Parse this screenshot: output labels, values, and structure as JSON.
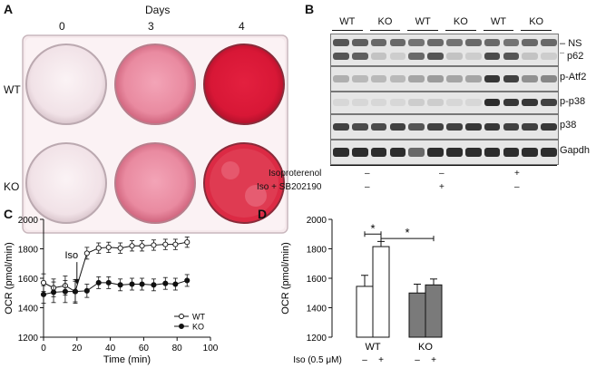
{
  "panels": {
    "A": {
      "letter": "A",
      "days_title": "Days",
      "day_labels": [
        "0",
        "3",
        "4"
      ],
      "row_labels": [
        "WT",
        "KO"
      ]
    },
    "B": {
      "letter": "B",
      "lane_groups": [
        "WT",
        "KO",
        "WT",
        "KO",
        "WT",
        "KO"
      ],
      "bands": [
        "NS",
        "p62",
        "p-Atf2",
        "p-p38",
        "p38",
        "Gapdh"
      ],
      "treatments": [
        {
          "label": "Isoproterenol",
          "signs": [
            "–",
            "–",
            "+"
          ]
        },
        {
          "label": "Iso + SB202190",
          "signs": [
            "–",
            "+",
            "–"
          ]
        }
      ]
    },
    "C": {
      "letter": "C"
    },
    "D": {
      "letter": "D"
    }
  },
  "chart_data": [
    {
      "type": "line",
      "panel": "C",
      "xlabel": "Time (min)",
      "ylabel": "OCR (pmol/min)",
      "xlim": [
        0,
        100
      ],
      "ylim": [
        1200,
        2000
      ],
      "xticks": [
        0,
        20,
        40,
        60,
        80,
        100
      ],
      "yticks": [
        1200,
        1400,
        1600,
        1800,
        2000
      ],
      "annotation": {
        "text": "Iso",
        "x": 20
      },
      "series": [
        {
          "name": "WT",
          "marker": "open-circle",
          "x": [
            0,
            6,
            13,
            19,
            26,
            33,
            39,
            46,
            53,
            59,
            66,
            73,
            79,
            86
          ],
          "y": [
            1570,
            1535,
            1550,
            1510,
            1770,
            1805,
            1810,
            1805,
            1820,
            1820,
            1825,
            1830,
            1830,
            1845
          ],
          "err": [
            60,
            60,
            65,
            70,
            40,
            35,
            35,
            35,
            35,
            35,
            35,
            35,
            35,
            35
          ]
        },
        {
          "name": "KO",
          "marker": "filled-circle",
          "x": [
            0,
            6,
            13,
            19,
            26,
            33,
            39,
            46,
            53,
            59,
            66,
            73,
            79,
            86
          ],
          "y": [
            1490,
            1505,
            1510,
            1510,
            1515,
            1570,
            1570,
            1555,
            1560,
            1560,
            1555,
            1565,
            1560,
            1585
          ],
          "err": [
            60,
            70,
            75,
            80,
            45,
            40,
            40,
            40,
            40,
            40,
            40,
            40,
            40,
            40
          ]
        }
      ]
    },
    {
      "type": "bar",
      "panel": "D",
      "ylabel": "OCR (pmol/min)",
      "ylim": [
        1200,
        2000
      ],
      "yticks": [
        1200,
        1400,
        1600,
        1800,
        2000
      ],
      "groups": [
        "WT",
        "KO"
      ],
      "treatment_label": "Iso (0.5 μM)",
      "treatment_signs": [
        "–",
        "+",
        "–",
        "+"
      ],
      "bars": [
        {
          "group": "WT",
          "iso": "–",
          "value": 1545,
          "err": 75,
          "fill": "#ffffff"
        },
        {
          "group": "WT",
          "iso": "+",
          "value": 1815,
          "err": 35,
          "fill": "#ffffff"
        },
        {
          "group": "KO",
          "iso": "–",
          "value": 1500,
          "err": 60,
          "fill": "#7a7a7a"
        },
        {
          "group": "KO",
          "iso": "+",
          "value": 1555,
          "err": 40,
          "fill": "#7a7a7a"
        }
      ],
      "significance": [
        {
          "from": 0,
          "to": 1,
          "label": "*"
        },
        {
          "from": 1,
          "to": 3,
          "label": "*"
        }
      ]
    }
  ]
}
